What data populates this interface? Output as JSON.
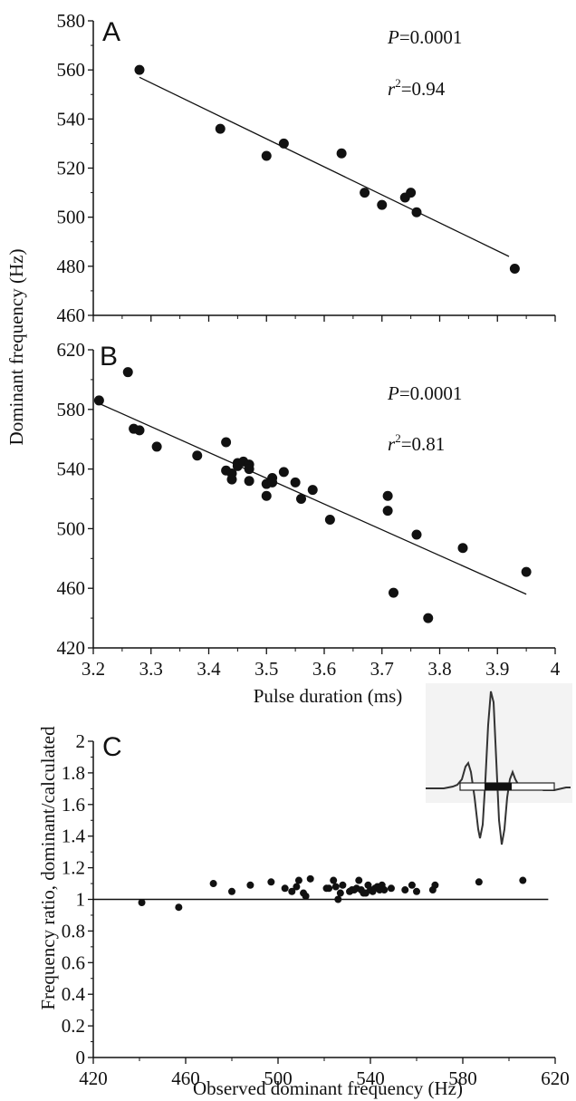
{
  "figure": {
    "ylabel_shared_ab": "Dominant frequency (Hz)",
    "xlabel_shared_ab": "Pulse duration (ms)",
    "ylabel_c": "Frequency ratio, dominant/calculated",
    "xlabel_c": "Observed dominant frequency (Hz)"
  },
  "chart_data": [
    {
      "panel": "A",
      "type": "scatter",
      "x_range": [
        3.2,
        4.0
      ],
      "ylim": [
        460,
        580
      ],
      "y_ticks": [
        460,
        480,
        500,
        520,
        540,
        560,
        580
      ],
      "y_tick_labels": [
        "460",
        "480",
        "500",
        "520",
        "540",
        "560",
        "580"
      ],
      "stats": {
        "P_label": "P",
        "P_value": "=0.0001",
        "r_label": "r",
        "r_exp": "2",
        "r_value": "=0.94"
      },
      "points": [
        {
          "x": 3.28,
          "y": 560
        },
        {
          "x": 3.42,
          "y": 536
        },
        {
          "x": 3.5,
          "y": 525
        },
        {
          "x": 3.53,
          "y": 530
        },
        {
          "x": 3.63,
          "y": 526
        },
        {
          "x": 3.67,
          "y": 510
        },
        {
          "x": 3.7,
          "y": 505
        },
        {
          "x": 3.74,
          "y": 508
        },
        {
          "x": 3.75,
          "y": 510
        },
        {
          "x": 3.76,
          "y": 502
        },
        {
          "x": 3.93,
          "y": 479
        }
      ],
      "fit": [
        {
          "x": 3.28,
          "y": 557
        },
        {
          "x": 3.92,
          "y": 484
        }
      ]
    },
    {
      "panel": "B",
      "type": "scatter",
      "xlim": [
        3.2,
        4.0
      ],
      "x_ticks": [
        3.2,
        3.3,
        3.4,
        3.5,
        3.6,
        3.7,
        3.8,
        3.9,
        4.0
      ],
      "x_tick_labels": [
        "3.2",
        "3.3",
        "3.4",
        "3.5",
        "3.6",
        "3.7",
        "3.8",
        "3.9",
        "4"
      ],
      "ylim": [
        420,
        620
      ],
      "y_ticks": [
        420,
        460,
        500,
        540,
        580,
        620
      ],
      "y_tick_labels": [
        "420",
        "460",
        "500",
        "540",
        "580",
        "620"
      ],
      "stats": {
        "P_label": "P",
        "P_value": "=0.0001",
        "r_label": "r",
        "r_exp": "2",
        "r_value": "=0.81"
      },
      "points": [
        {
          "x": 3.21,
          "y": 586
        },
        {
          "x": 3.26,
          "y": 605
        },
        {
          "x": 3.27,
          "y": 567
        },
        {
          "x": 3.28,
          "y": 566
        },
        {
          "x": 3.31,
          "y": 555
        },
        {
          "x": 3.38,
          "y": 549
        },
        {
          "x": 3.43,
          "y": 558
        },
        {
          "x": 3.43,
          "y": 539
        },
        {
          "x": 3.44,
          "y": 537
        },
        {
          "x": 3.44,
          "y": 533
        },
        {
          "x": 3.45,
          "y": 544
        },
        {
          "x": 3.45,
          "y": 542
        },
        {
          "x": 3.46,
          "y": 545
        },
        {
          "x": 3.47,
          "y": 543
        },
        {
          "x": 3.47,
          "y": 540
        },
        {
          "x": 3.47,
          "y": 532
        },
        {
          "x": 3.5,
          "y": 530
        },
        {
          "x": 3.5,
          "y": 522
        },
        {
          "x": 3.51,
          "y": 534
        },
        {
          "x": 3.51,
          "y": 531
        },
        {
          "x": 3.53,
          "y": 538
        },
        {
          "x": 3.55,
          "y": 531
        },
        {
          "x": 3.56,
          "y": 520
        },
        {
          "x": 3.58,
          "y": 526
        },
        {
          "x": 3.61,
          "y": 506
        },
        {
          "x": 3.71,
          "y": 522
        },
        {
          "x": 3.71,
          "y": 512
        },
        {
          "x": 3.72,
          "y": 457
        },
        {
          "x": 3.76,
          "y": 496
        },
        {
          "x": 3.78,
          "y": 440
        },
        {
          "x": 3.84,
          "y": 487
        },
        {
          "x": 3.95,
          "y": 471
        }
      ],
      "fit": [
        {
          "x": 3.21,
          "y": 584
        },
        {
          "x": 3.95,
          "y": 456
        }
      ]
    },
    {
      "panel": "C",
      "type": "scatter",
      "xlim": [
        420,
        620
      ],
      "x_ticks": [
        420,
        460,
        500,
        540,
        580,
        620
      ],
      "x_tick_labels": [
        "420",
        "460",
        "500",
        "540",
        "580",
        "620"
      ],
      "ylim": [
        0,
        2
      ],
      "y_ticks": [
        0,
        0.2,
        0.4,
        0.6,
        0.8,
        1.0,
        1.2,
        1.4,
        1.6,
        1.8,
        2.0
      ],
      "y_tick_labels": [
        "0",
        "0.2",
        "0.4",
        "0.6",
        "0.8",
        "1",
        "1.2",
        "1.4",
        "1.6",
        "1.8",
        "2"
      ],
      "reference_line_y": 1.0,
      "points": [
        {
          "x": 441,
          "y": 0.98
        },
        {
          "x": 457,
          "y": 0.95
        },
        {
          "x": 472,
          "y": 1.1
        },
        {
          "x": 480,
          "y": 1.05
        },
        {
          "x": 488,
          "y": 1.09
        },
        {
          "x": 497,
          "y": 1.11
        },
        {
          "x": 503,
          "y": 1.07
        },
        {
          "x": 506,
          "y": 1.05
        },
        {
          "x": 508,
          "y": 1.08
        },
        {
          "x": 509,
          "y": 1.12
        },
        {
          "x": 511,
          "y": 1.04
        },
        {
          "x": 512,
          "y": 1.02
        },
        {
          "x": 514,
          "y": 1.13
        },
        {
          "x": 521,
          "y": 1.07
        },
        {
          "x": 522,
          "y": 1.07
        },
        {
          "x": 524,
          "y": 1.12
        },
        {
          "x": 525,
          "y": 1.08
        },
        {
          "x": 526,
          "y": 1.0
        },
        {
          "x": 527,
          "y": 1.04
        },
        {
          "x": 528,
          "y": 1.09
        },
        {
          "x": 531,
          "y": 1.05
        },
        {
          "x": 532,
          "y": 1.06
        },
        {
          "x": 533,
          "y": 1.06
        },
        {
          "x": 534,
          "y": 1.07
        },
        {
          "x": 535,
          "y": 1.12
        },
        {
          "x": 536,
          "y": 1.06
        },
        {
          "x": 537,
          "y": 1.04
        },
        {
          "x": 538,
          "y": 1.04
        },
        {
          "x": 539,
          "y": 1.09
        },
        {
          "x": 540,
          "y": 1.06
        },
        {
          "x": 541,
          "y": 1.05
        },
        {
          "x": 542,
          "y": 1.07
        },
        {
          "x": 543,
          "y": 1.08
        },
        {
          "x": 544,
          "y": 1.06
        },
        {
          "x": 545,
          "y": 1.09
        },
        {
          "x": 546,
          "y": 1.06
        },
        {
          "x": 549,
          "y": 1.07
        },
        {
          "x": 555,
          "y": 1.06
        },
        {
          "x": 558,
          "y": 1.09
        },
        {
          "x": 560,
          "y": 1.05
        },
        {
          "x": 567,
          "y": 1.06
        },
        {
          "x": 568,
          "y": 1.09
        },
        {
          "x": 587,
          "y": 1.11
        },
        {
          "x": 606,
          "y": 1.12
        }
      ]
    }
  ]
}
